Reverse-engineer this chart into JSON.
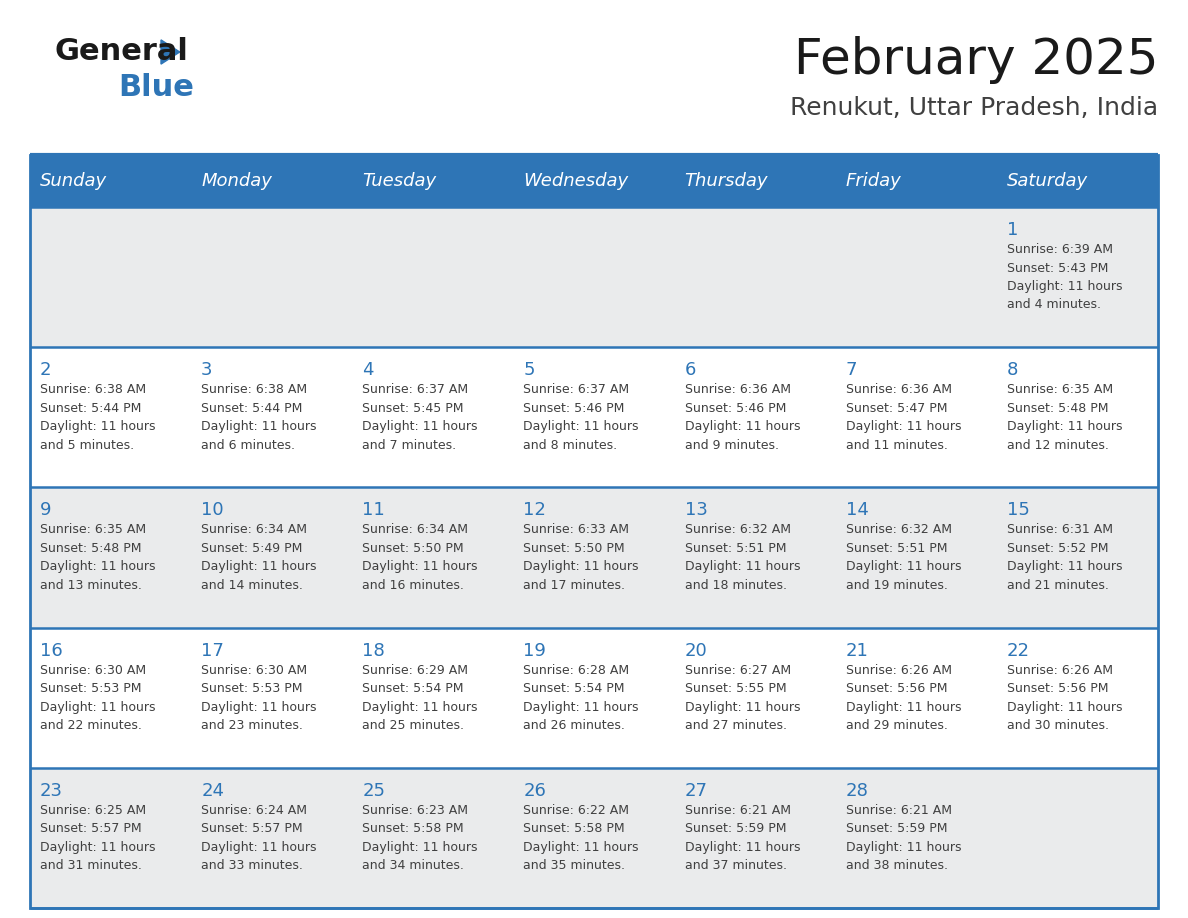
{
  "title": "February 2025",
  "subtitle": "Renukut, Uttar Pradesh, India",
  "header_bg": "#2E75B6",
  "header_text_color": "#FFFFFF",
  "days_of_week": [
    "Sunday",
    "Monday",
    "Tuesday",
    "Wednesday",
    "Thursday",
    "Friday",
    "Saturday"
  ],
  "weeks": [
    [
      {
        "day": null,
        "sunrise": null,
        "sunset": null,
        "daylight": null
      },
      {
        "day": null,
        "sunrise": null,
        "sunset": null,
        "daylight": null
      },
      {
        "day": null,
        "sunrise": null,
        "sunset": null,
        "daylight": null
      },
      {
        "day": null,
        "sunrise": null,
        "sunset": null,
        "daylight": null
      },
      {
        "day": null,
        "sunrise": null,
        "sunset": null,
        "daylight": null
      },
      {
        "day": null,
        "sunrise": null,
        "sunset": null,
        "daylight": null
      },
      {
        "day": 1,
        "sunrise": "6:39 AM",
        "sunset": "5:43 PM",
        "daylight": "11 hours and 4 minutes."
      }
    ],
    [
      {
        "day": 2,
        "sunrise": "6:38 AM",
        "sunset": "5:44 PM",
        "daylight": "11 hours and 5 minutes."
      },
      {
        "day": 3,
        "sunrise": "6:38 AM",
        "sunset": "5:44 PM",
        "daylight": "11 hours and 6 minutes."
      },
      {
        "day": 4,
        "sunrise": "6:37 AM",
        "sunset": "5:45 PM",
        "daylight": "11 hours and 7 minutes."
      },
      {
        "day": 5,
        "sunrise": "6:37 AM",
        "sunset": "5:46 PM",
        "daylight": "11 hours and 8 minutes."
      },
      {
        "day": 6,
        "sunrise": "6:36 AM",
        "sunset": "5:46 PM",
        "daylight": "11 hours and 9 minutes."
      },
      {
        "day": 7,
        "sunrise": "6:36 AM",
        "sunset": "5:47 PM",
        "daylight": "11 hours and 11 minutes."
      },
      {
        "day": 8,
        "sunrise": "6:35 AM",
        "sunset": "5:48 PM",
        "daylight": "11 hours and 12 minutes."
      }
    ],
    [
      {
        "day": 9,
        "sunrise": "6:35 AM",
        "sunset": "5:48 PM",
        "daylight": "11 hours and 13 minutes."
      },
      {
        "day": 10,
        "sunrise": "6:34 AM",
        "sunset": "5:49 PM",
        "daylight": "11 hours and 14 minutes."
      },
      {
        "day": 11,
        "sunrise": "6:34 AM",
        "sunset": "5:50 PM",
        "daylight": "11 hours and 16 minutes."
      },
      {
        "day": 12,
        "sunrise": "6:33 AM",
        "sunset": "5:50 PM",
        "daylight": "11 hours and 17 minutes."
      },
      {
        "day": 13,
        "sunrise": "6:32 AM",
        "sunset": "5:51 PM",
        "daylight": "11 hours and 18 minutes."
      },
      {
        "day": 14,
        "sunrise": "6:32 AM",
        "sunset": "5:51 PM",
        "daylight": "11 hours and 19 minutes."
      },
      {
        "day": 15,
        "sunrise": "6:31 AM",
        "sunset": "5:52 PM",
        "daylight": "11 hours and 21 minutes."
      }
    ],
    [
      {
        "day": 16,
        "sunrise": "6:30 AM",
        "sunset": "5:53 PM",
        "daylight": "11 hours and 22 minutes."
      },
      {
        "day": 17,
        "sunrise": "6:30 AM",
        "sunset": "5:53 PM",
        "daylight": "11 hours and 23 minutes."
      },
      {
        "day": 18,
        "sunrise": "6:29 AM",
        "sunset": "5:54 PM",
        "daylight": "11 hours and 25 minutes."
      },
      {
        "day": 19,
        "sunrise": "6:28 AM",
        "sunset": "5:54 PM",
        "daylight": "11 hours and 26 minutes."
      },
      {
        "day": 20,
        "sunrise": "6:27 AM",
        "sunset": "5:55 PM",
        "daylight": "11 hours and 27 minutes."
      },
      {
        "day": 21,
        "sunrise": "6:26 AM",
        "sunset": "5:56 PM",
        "daylight": "11 hours and 29 minutes."
      },
      {
        "day": 22,
        "sunrise": "6:26 AM",
        "sunset": "5:56 PM",
        "daylight": "11 hours and 30 minutes."
      }
    ],
    [
      {
        "day": 23,
        "sunrise": "6:25 AM",
        "sunset": "5:57 PM",
        "daylight": "11 hours and 31 minutes."
      },
      {
        "day": 24,
        "sunrise": "6:24 AM",
        "sunset": "5:57 PM",
        "daylight": "11 hours and 33 minutes."
      },
      {
        "day": 25,
        "sunrise": "6:23 AM",
        "sunset": "5:58 PM",
        "daylight": "11 hours and 34 minutes."
      },
      {
        "day": 26,
        "sunrise": "6:22 AM",
        "sunset": "5:58 PM",
        "daylight": "11 hours and 35 minutes."
      },
      {
        "day": 27,
        "sunrise": "6:21 AM",
        "sunset": "5:59 PM",
        "daylight": "11 hours and 37 minutes."
      },
      {
        "day": 28,
        "sunrise": "6:21 AM",
        "sunset": "5:59 PM",
        "daylight": "11 hours and 38 minutes."
      },
      {
        "day": null,
        "sunrise": null,
        "sunset": null,
        "daylight": null
      }
    ]
  ],
  "cell_bg_light": "#EAEBEC",
  "cell_bg_white": "#FFFFFF",
  "border_color": "#2E75B6",
  "day_number_color": "#2E75B6",
  "info_text_color": "#404040",
  "logo_color_general": "#1A1A1A",
  "logo_color_blue": "#2E75B6",
  "title_fontsize": 36,
  "subtitle_fontsize": 18,
  "header_fontsize": 13,
  "day_num_fontsize": 13,
  "info_fontsize": 9
}
